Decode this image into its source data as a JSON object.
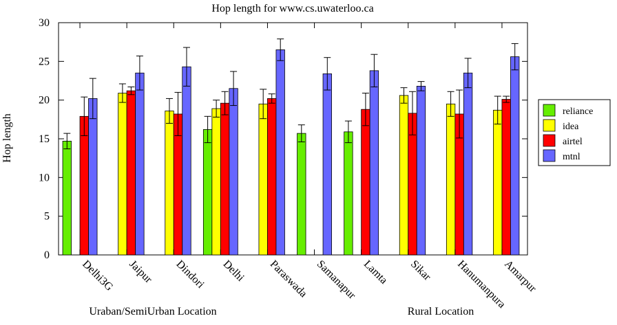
{
  "chart_data": {
    "type": "bar",
    "title": "Hop length for www.cs.uwaterloo.ca",
    "xlabel": "",
    "ylabel": "Hop length",
    "ylim": [
      0,
      30
    ],
    "yticks": [
      0,
      5,
      10,
      15,
      20,
      25,
      30
    ],
    "grid": false,
    "legend_position": "right",
    "categories": [
      "Delhi3G",
      "Jaipur",
      "Dindori",
      "Delhi",
      "Paraswada",
      "Samanapur",
      "Lamta",
      "Sikar",
      "Hanumanpura",
      "Amarpur"
    ],
    "group_labels": [
      {
        "text": "Uraban/SemiUrban Location",
        "categories": [
          "Delhi3G",
          "Jaipur",
          "Dindori",
          "Delhi",
          "Paraswada"
        ]
      },
      {
        "text": "Rural Location",
        "categories": [
          "Samanapur",
          "Lamta",
          "Sikar",
          "Hanumanpura",
          "Amarpur"
        ]
      }
    ],
    "series": [
      {
        "name": "reliance",
        "color": "#66ee00",
        "values": [
          14.7,
          null,
          null,
          16.2,
          null,
          15.7,
          15.9,
          null,
          null,
          null
        ],
        "errors": [
          1.0,
          null,
          null,
          1.7,
          null,
          1.1,
          1.4,
          null,
          null,
          null
        ]
      },
      {
        "name": "idea",
        "color": "#ffff00",
        "values": [
          null,
          20.9,
          18.6,
          18.9,
          19.5,
          null,
          null,
          20.6,
          19.5,
          18.7
        ],
        "errors": [
          null,
          1.2,
          1.6,
          1.1,
          1.9,
          null,
          null,
          1.0,
          1.6,
          1.8
        ]
      },
      {
        "name": "airtel",
        "color": "#ff0000",
        "values": [
          17.9,
          21.2,
          18.2,
          19.6,
          20.2,
          null,
          18.8,
          18.3,
          18.2,
          20.1
        ],
        "errors": [
          2.5,
          0.5,
          2.8,
          1.5,
          0.6,
          null,
          2.1,
          2.8,
          3.1,
          0.4
        ]
      },
      {
        "name": "mtnl",
        "color": "#6666ff",
        "values": [
          20.2,
          23.5,
          24.3,
          21.5,
          26.5,
          23.4,
          23.8,
          21.8,
          23.5,
          25.6
        ],
        "errors": [
          2.6,
          2.2,
          2.5,
          2.2,
          1.4,
          2.1,
          2.1,
          0.6,
          1.9,
          1.7
        ]
      }
    ]
  }
}
